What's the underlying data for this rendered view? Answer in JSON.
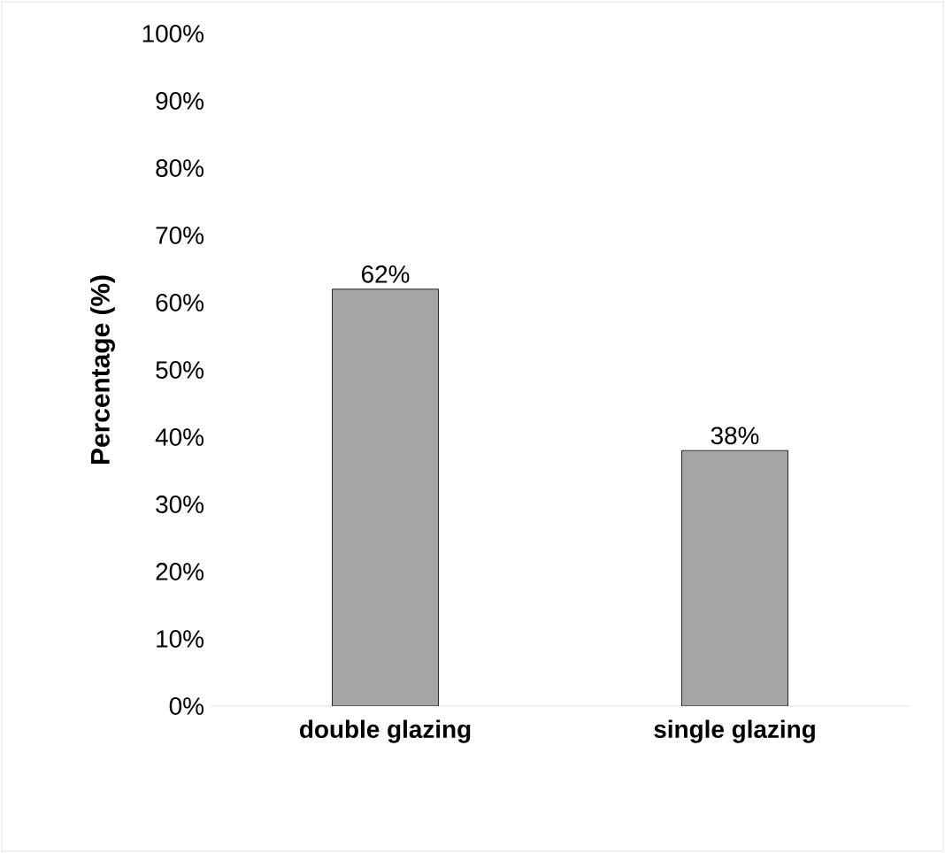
{
  "chart_data": {
    "type": "bar",
    "ylabel": "Percentage (%)",
    "categories": [
      "double glazing",
      "single glazing"
    ],
    "values": [
      62,
      38
    ],
    "value_labels": [
      "62%",
      "38%"
    ],
    "color": "#a5a5a5",
    "ylim": [
      0,
      100
    ],
    "yticks": [
      {
        "value": 0,
        "label": "0%"
      },
      {
        "value": 10,
        "label": "10%"
      },
      {
        "value": 20,
        "label": "20%"
      },
      {
        "value": 30,
        "label": "30%"
      },
      {
        "value": 40,
        "label": "40%"
      },
      {
        "value": 50,
        "label": "50%"
      },
      {
        "value": 60,
        "label": "60%"
      },
      {
        "value": 70,
        "label": "70%"
      },
      {
        "value": 80,
        "label": "80%"
      },
      {
        "value": 90,
        "label": "90%"
      },
      {
        "value": 100,
        "label": "100%"
      }
    ]
  }
}
